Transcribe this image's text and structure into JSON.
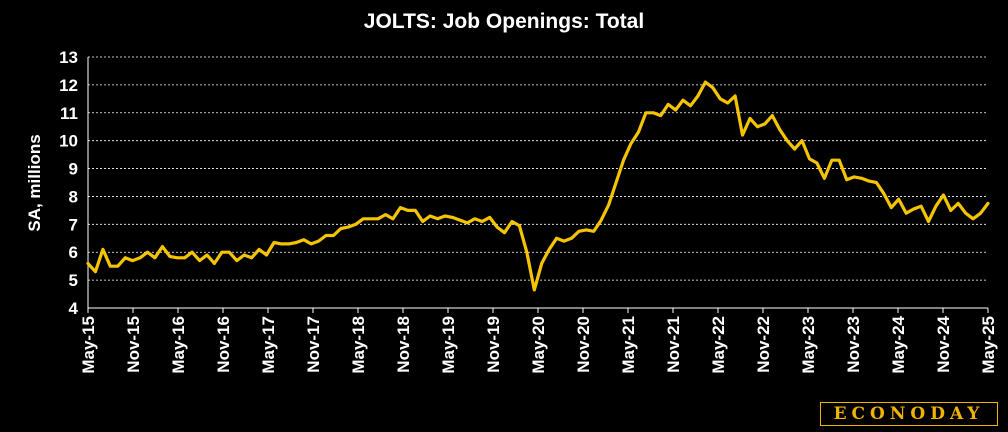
{
  "brand": "ECONODAY",
  "colors": {
    "background": "#000000",
    "line": "#f5c400",
    "grid": "#ffffff",
    "brand": "#f0b400"
  },
  "chart_data": {
    "type": "line",
    "title": "JOLTS: Job Openings: Total",
    "ylabel": "SA, millions",
    "xlabel": "",
    "ylim": [
      4,
      13
    ],
    "yticks": [
      4,
      5,
      6,
      7,
      8,
      9,
      10,
      11,
      12,
      13
    ],
    "grid": "horizontal dashed",
    "legend": "none",
    "x_tick_labels": [
      "May-15",
      "Nov-15",
      "May-16",
      "Nov-16",
      "May-17",
      "Nov-17",
      "May-18",
      "Nov-18",
      "May-19",
      "Nov-19",
      "May-20",
      "Nov-20",
      "May-21",
      "Nov-21",
      "May-22",
      "Nov-22",
      "May-23",
      "Nov-23",
      "May-24",
      "Nov-24",
      "May-25"
    ],
    "x_start": "May-15",
    "x_end": "May-25",
    "series": [
      {
        "values": [
          5.6,
          5.3,
          6.1,
          5.5,
          5.5,
          5.8,
          5.7,
          5.8,
          6.0,
          5.8,
          6.2,
          5.85,
          5.8,
          5.8,
          6.0,
          5.7,
          5.9,
          5.6,
          6.0,
          6.0,
          5.7,
          5.9,
          5.8,
          6.1,
          5.9,
          6.35,
          6.3,
          6.3,
          6.35,
          6.45,
          6.3,
          6.4,
          6.6,
          6.6,
          6.85,
          6.9,
          7.0,
          7.2,
          7.2,
          7.2,
          7.35,
          7.2,
          7.6,
          7.5,
          7.5,
          7.1,
          7.3,
          7.2,
          7.3,
          7.25,
          7.15,
          7.05,
          7.2,
          7.1,
          7.25,
          6.9,
          6.7,
          7.1,
          6.95,
          6.0,
          4.65,
          5.6,
          6.1,
          6.5,
          6.4,
          6.5,
          6.75,
          6.8,
          6.75,
          7.15,
          7.7,
          8.5,
          9.3,
          9.9,
          10.3,
          11.0,
          11.0,
          10.9,
          11.3,
          11.1,
          11.45,
          11.25,
          11.6,
          12.1,
          11.9,
          11.5,
          11.35,
          11.6,
          10.2,
          10.8,
          10.5,
          10.6,
          10.9,
          10.4,
          10.0,
          9.7,
          10.0,
          9.35,
          9.2,
          8.65,
          9.3,
          9.3,
          8.6,
          8.7,
          8.65,
          8.55,
          8.5,
          8.1,
          7.6,
          7.9,
          7.4,
          7.55,
          7.65,
          7.1,
          7.65,
          8.05,
          7.5,
          7.75,
          7.4,
          7.2,
          7.4,
          7.75
        ]
      }
    ]
  }
}
